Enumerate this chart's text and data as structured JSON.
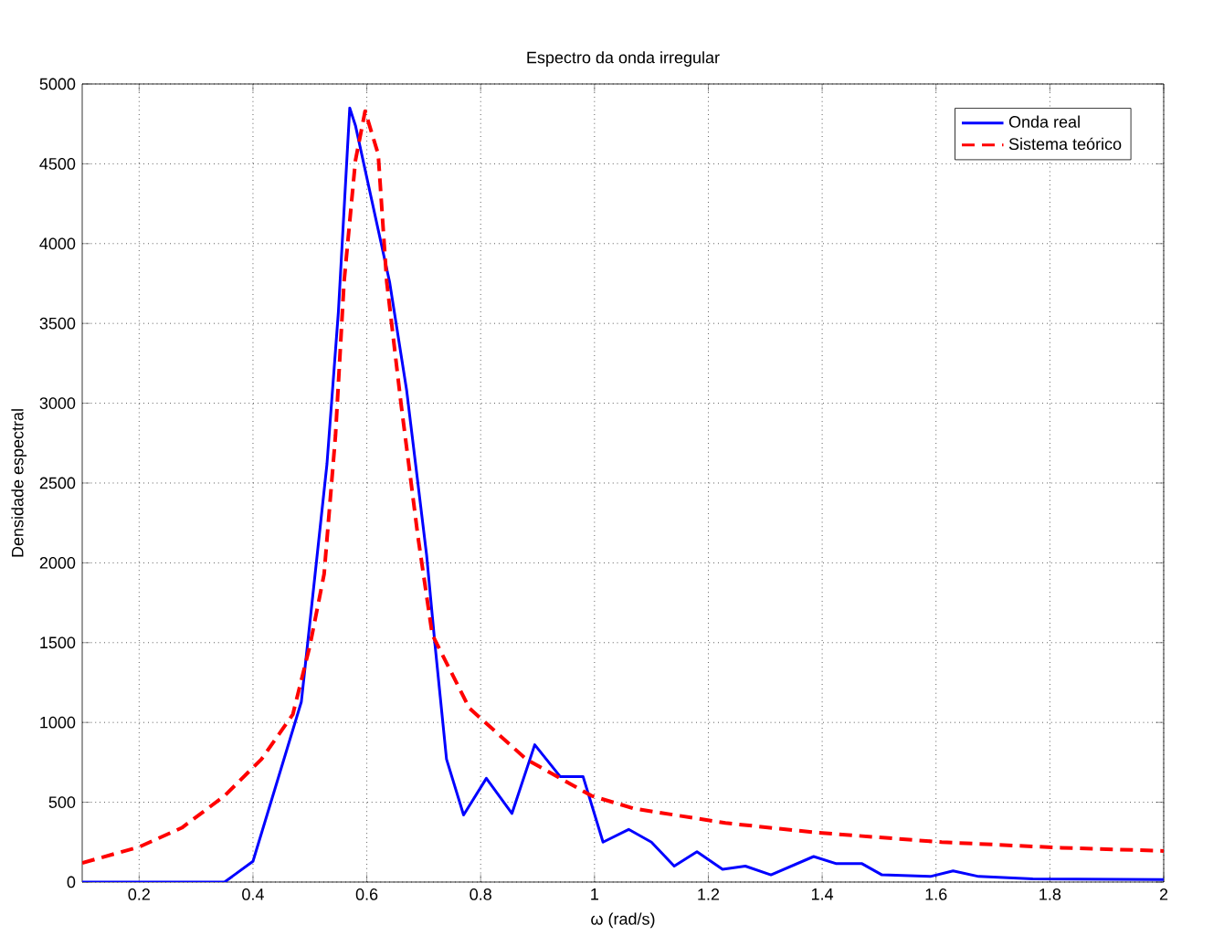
{
  "chart_data": {
    "type": "line",
    "title": "Espectro da onda irregular",
    "xlabel": "ω (rad/s)",
    "ylabel": "Densidade espectral",
    "xlim": [
      0.1,
      2
    ],
    "ylim": [
      0,
      5000
    ],
    "xticks": [
      0.2,
      0.4,
      0.6,
      0.8,
      1,
      1.2,
      1.4,
      1.6,
      1.8,
      2
    ],
    "yticks": [
      0,
      500,
      1000,
      1500,
      2000,
      2500,
      3000,
      3500,
      4000,
      4500,
      5000
    ],
    "grid": true,
    "legend": "top right",
    "series": [
      {
        "name": "Onda real",
        "color": "#0000ff",
        "line_style": "solid",
        "x": [
          0.1,
          0.35,
          0.4,
          0.485,
          0.53,
          0.55,
          0.57,
          0.58,
          0.64,
          0.67,
          0.705,
          0.72,
          0.74,
          0.77,
          0.81,
          0.855,
          0.895,
          0.94,
          0.98,
          1.015,
          1.06,
          1.1,
          1.14,
          1.18,
          1.225,
          1.265,
          1.31,
          1.385,
          1.425,
          1.47,
          1.505,
          1.59,
          1.63,
          1.675,
          1.77,
          2.0
        ],
        "values": [
          0,
          0,
          130,
          1130,
          2620,
          3570,
          4850,
          4740,
          3760,
          3080,
          2050,
          1480,
          770,
          420,
          650,
          430,
          860,
          660,
          660,
          250,
          330,
          250,
          100,
          190,
          80,
          100,
          45,
          160,
          115,
          115,
          45,
          35,
          70,
          35,
          20,
          15
        ]
      },
      {
        "name": "Sistema teórico",
        "color": "#ff0000",
        "line_style": "dashed",
        "x": [
          0.1,
          0.2,
          0.275,
          0.35,
          0.415,
          0.47,
          0.5,
          0.525,
          0.545,
          0.56,
          0.58,
          0.597,
          0.62,
          0.635,
          0.66,
          0.69,
          0.715,
          0.78,
          0.88,
          0.995,
          1.07,
          1.23,
          1.39,
          1.61,
          1.82,
          2.0
        ],
        "values": [
          120,
          220,
          340,
          540,
          770,
          1050,
          1480,
          1930,
          2800,
          3760,
          4520,
          4830,
          4560,
          3760,
          3000,
          2160,
          1550,
          1090,
          770,
          540,
          460,
          370,
          310,
          250,
          215,
          195
        ]
      }
    ]
  }
}
